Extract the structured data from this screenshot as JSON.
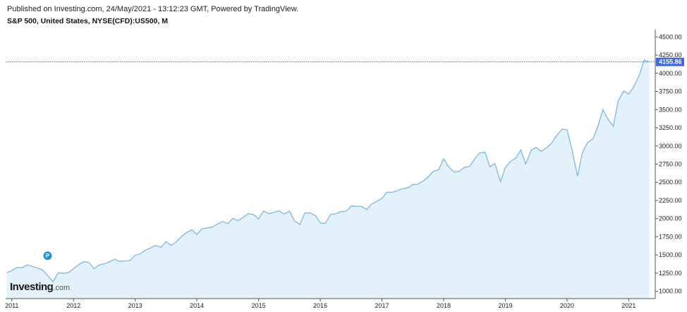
{
  "header": {
    "published": "Published on Investing.com, 24/May/2021 - 13:12:23 GMT, Powered by TradingView.",
    "instrument": "S&P 500, United States, NYSE(CFD):US500, M"
  },
  "logo": {
    "main": "Investing",
    "suffix": ".com"
  },
  "colors": {
    "line": "#7cb7e6",
    "fill": "#e3f1fa",
    "price_line": "#3a5bd0",
    "price_badge": "#3f6ad8",
    "marker": "#1e90e0"
  },
  "chart_data": {
    "type": "area",
    "ylim": [
      900,
      4600
    ],
    "xlim": [
      2010.9,
      2021.43
    ],
    "yticks": [
      {
        "v": 1000,
        "label": "1000.00"
      },
      {
        "v": 1250,
        "label": "1250.00"
      },
      {
        "v": 1500,
        "label": "1500.00"
      },
      {
        "v": 1750,
        "label": "1750.00"
      },
      {
        "v": 2000,
        "label": "2000.00"
      },
      {
        "v": 2250,
        "label": "2250.00"
      },
      {
        "v": 2500,
        "label": "2500.00"
      },
      {
        "v": 2750,
        "label": "2750.00"
      },
      {
        "v": 3000,
        "label": "3000.00"
      },
      {
        "v": 3250,
        "label": "3250.00"
      },
      {
        "v": 3500,
        "label": "3500.00"
      },
      {
        "v": 3750,
        "label": "3750.00"
      },
      {
        "v": 4000,
        "label": "4000.00"
      },
      {
        "v": 4250,
        "label": "4250.00"
      },
      {
        "v": 4500,
        "label": "4500.00"
      }
    ],
    "xticks": [
      {
        "v": 2011,
        "label": "2011"
      },
      {
        "v": 2012,
        "label": "2012"
      },
      {
        "v": 2013,
        "label": "2013"
      },
      {
        "v": 2014,
        "label": "2014"
      },
      {
        "v": 2015,
        "label": "2015"
      },
      {
        "v": 2016,
        "label": "2016"
      },
      {
        "v": 2017,
        "label": "2017"
      },
      {
        "v": 2018,
        "label": "2018"
      },
      {
        "v": 2019,
        "label": "2019"
      },
      {
        "v": 2020,
        "label": "2020"
      },
      {
        "v": 2021,
        "label": "2021"
      }
    ],
    "current_price": {
      "value": 4155.86,
      "label": "4155.86"
    },
    "marker": {
      "x": 2011.58,
      "y": 1490,
      "label": "P"
    },
    "points": [
      [
        2010.92,
        1257
      ],
      [
        2011.0,
        1286
      ],
      [
        2011.08,
        1327
      ],
      [
        2011.17,
        1325
      ],
      [
        2011.25,
        1363
      ],
      [
        2011.33,
        1345
      ],
      [
        2011.42,
        1320
      ],
      [
        2011.5,
        1292
      ],
      [
        2011.58,
        1218
      ],
      [
        2011.67,
        1131
      ],
      [
        2011.75,
        1253
      ],
      [
        2011.83,
        1247
      ],
      [
        2011.92,
        1258
      ],
      [
        2012.0,
        1312
      ],
      [
        2012.08,
        1365
      ],
      [
        2012.17,
        1408
      ],
      [
        2012.25,
        1398
      ],
      [
        2012.33,
        1310
      ],
      [
        2012.42,
        1362
      ],
      [
        2012.5,
        1379
      ],
      [
        2012.58,
        1406
      ],
      [
        2012.67,
        1441
      ],
      [
        2012.75,
        1412
      ],
      [
        2012.83,
        1416
      ],
      [
        2012.92,
        1426
      ],
      [
        2013.0,
        1498
      ],
      [
        2013.08,
        1515
      ],
      [
        2013.17,
        1569
      ],
      [
        2013.25,
        1597
      ],
      [
        2013.33,
        1631
      ],
      [
        2013.42,
        1606
      ],
      [
        2013.5,
        1686
      ],
      [
        2013.58,
        1633
      ],
      [
        2013.67,
        1682
      ],
      [
        2013.75,
        1757
      ],
      [
        2013.83,
        1806
      ],
      [
        2013.92,
        1848
      ],
      [
        2014.0,
        1783
      ],
      [
        2014.08,
        1859
      ],
      [
        2014.17,
        1872
      ],
      [
        2014.25,
        1884
      ],
      [
        2014.33,
        1924
      ],
      [
        2014.42,
        1960
      ],
      [
        2014.5,
        1931
      ],
      [
        2014.58,
        2003
      ],
      [
        2014.67,
        1972
      ],
      [
        2014.75,
        2018
      ],
      [
        2014.83,
        2068
      ],
      [
        2014.92,
        2059
      ],
      [
        2015.0,
        1995
      ],
      [
        2015.08,
        2105
      ],
      [
        2015.17,
        2068
      ],
      [
        2015.25,
        2086
      ],
      [
        2015.33,
        2107
      ],
      [
        2015.42,
        2063
      ],
      [
        2015.5,
        2104
      ],
      [
        2015.58,
        1972
      ],
      [
        2015.67,
        1920
      ],
      [
        2015.75,
        2079
      ],
      [
        2015.83,
        2080
      ],
      [
        2015.92,
        2044
      ],
      [
        2016.0,
        1940
      ],
      [
        2016.08,
        1932
      ],
      [
        2016.17,
        2060
      ],
      [
        2016.25,
        2065
      ],
      [
        2016.33,
        2097
      ],
      [
        2016.42,
        2099
      ],
      [
        2016.5,
        2174
      ],
      [
        2016.58,
        2171
      ],
      [
        2016.67,
        2168
      ],
      [
        2016.75,
        2126
      ],
      [
        2016.83,
        2199
      ],
      [
        2016.92,
        2239
      ],
      [
        2017.0,
        2279
      ],
      [
        2017.08,
        2364
      ],
      [
        2017.17,
        2363
      ],
      [
        2017.25,
        2384
      ],
      [
        2017.33,
        2412
      ],
      [
        2017.42,
        2423
      ],
      [
        2017.5,
        2470
      ],
      [
        2017.58,
        2472
      ],
      [
        2017.67,
        2519
      ],
      [
        2017.75,
        2575
      ],
      [
        2017.83,
        2648
      ],
      [
        2017.92,
        2674
      ],
      [
        2018.0,
        2824
      ],
      [
        2018.08,
        2714
      ],
      [
        2018.17,
        2641
      ],
      [
        2018.25,
        2648
      ],
      [
        2018.33,
        2705
      ],
      [
        2018.42,
        2718
      ],
      [
        2018.5,
        2816
      ],
      [
        2018.58,
        2902
      ],
      [
        2018.67,
        2914
      ],
      [
        2018.75,
        2712
      ],
      [
        2018.83,
        2760
      ],
      [
        2018.92,
        2507
      ],
      [
        2019.0,
        2704
      ],
      [
        2019.08,
        2784
      ],
      [
        2019.17,
        2834
      ],
      [
        2019.25,
        2946
      ],
      [
        2019.33,
        2752
      ],
      [
        2019.42,
        2942
      ],
      [
        2019.5,
        2980
      ],
      [
        2019.58,
        2926
      ],
      [
        2019.67,
        2977
      ],
      [
        2019.75,
        3038
      ],
      [
        2019.83,
        3141
      ],
      [
        2019.92,
        3231
      ],
      [
        2020.0,
        3225
      ],
      [
        2020.08,
        2954
      ],
      [
        2020.17,
        2585
      ],
      [
        2020.25,
        2912
      ],
      [
        2020.33,
        3044
      ],
      [
        2020.42,
        3100
      ],
      [
        2020.5,
        3271
      ],
      [
        2020.58,
        3500
      ],
      [
        2020.67,
        3363
      ],
      [
        2020.75,
        3270
      ],
      [
        2020.83,
        3622
      ],
      [
        2020.92,
        3756
      ],
      [
        2021.0,
        3714
      ],
      [
        2021.08,
        3811
      ],
      [
        2021.17,
        3973
      ],
      [
        2021.25,
        4181
      ],
      [
        2021.33,
        4156
      ]
    ]
  }
}
